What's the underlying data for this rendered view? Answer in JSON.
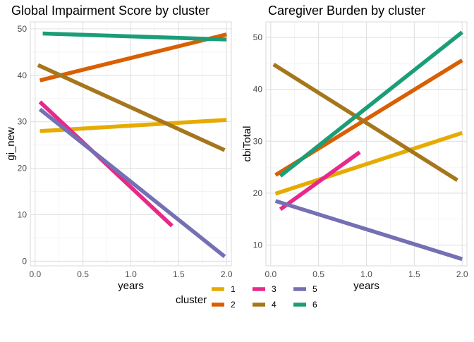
{
  "legend": {
    "title": "cluster",
    "entries": [
      {
        "label": "1",
        "color": "#E6AB02"
      },
      {
        "label": "2",
        "color": "#D95F02"
      },
      {
        "label": "3",
        "color": "#E7298A"
      },
      {
        "label": "4",
        "color": "#A6761D"
      },
      {
        "label": "5",
        "color": "#7570B3"
      },
      {
        "label": "6",
        "color": "#1B9E77"
      }
    ]
  },
  "chart_data": [
    {
      "type": "line",
      "title": "Global Impairment Score by cluster",
      "xlabel": "years",
      "ylabel": "gi_new",
      "xlim": [
        -0.05,
        2.05
      ],
      "ylim": [
        -1,
        51.5
      ],
      "xticks": [
        0.0,
        0.5,
        1.0,
        1.5,
        2.0
      ],
      "xtick_labels": [
        "0.0",
        "0.5",
        "1.0",
        "1.5",
        "2.0"
      ],
      "yticks": [
        0,
        10,
        20,
        30,
        40,
        50
      ],
      "ytick_labels": [
        "0",
        "10",
        "20",
        "30",
        "40",
        "50"
      ],
      "grid": true,
      "series": [
        {
          "name": "1",
          "x": [
            0.05,
            2.0
          ],
          "y": [
            28.0,
            30.4
          ]
        },
        {
          "name": "2",
          "x": [
            0.05,
            2.0
          ],
          "y": [
            38.9,
            48.8
          ]
        },
        {
          "name": "3",
          "x": [
            0.05,
            1.43
          ],
          "y": [
            34.3,
            7.6
          ]
        },
        {
          "name": "4",
          "x": [
            0.03,
            1.98
          ],
          "y": [
            42.2,
            23.9
          ]
        },
        {
          "name": "5",
          "x": [
            0.05,
            1.98
          ],
          "y": [
            32.7,
            1.0
          ]
        },
        {
          "name": "6",
          "x": [
            0.08,
            2.0
          ],
          "y": [
            49.0,
            47.7
          ]
        }
      ]
    },
    {
      "type": "line",
      "title": "Caregiver Burden by cluster",
      "xlabel": "years",
      "ylabel": "cbiTotal",
      "xlim": [
        -0.05,
        2.05
      ],
      "ylim": [
        6.0,
        53.0
      ],
      "xticks": [
        0.0,
        0.5,
        1.0,
        1.5,
        2.0
      ],
      "xtick_labels": [
        "0.0",
        "0.5",
        "1.0",
        "1.5",
        "2.0"
      ],
      "yticks": [
        10,
        20,
        30,
        40,
        50
      ],
      "ytick_labels": [
        "10",
        "20",
        "30",
        "40",
        "50"
      ],
      "grid": true,
      "series": [
        {
          "name": "1",
          "x": [
            0.05,
            2.0
          ],
          "y": [
            19.9,
            31.6
          ]
        },
        {
          "name": "2",
          "x": [
            0.05,
            2.0
          ],
          "y": [
            23.5,
            45.6
          ]
        },
        {
          "name": "3",
          "x": [
            0.1,
            0.93
          ],
          "y": [
            16.9,
            27.9
          ]
        },
        {
          "name": "4",
          "x": [
            0.03,
            1.95
          ],
          "y": [
            44.8,
            22.5
          ]
        },
        {
          "name": "5",
          "x": [
            0.05,
            2.0
          ],
          "y": [
            18.5,
            7.3
          ]
        },
        {
          "name": "6",
          "x": [
            0.1,
            2.0
          ],
          "y": [
            23.3,
            51.0
          ]
        }
      ]
    }
  ]
}
